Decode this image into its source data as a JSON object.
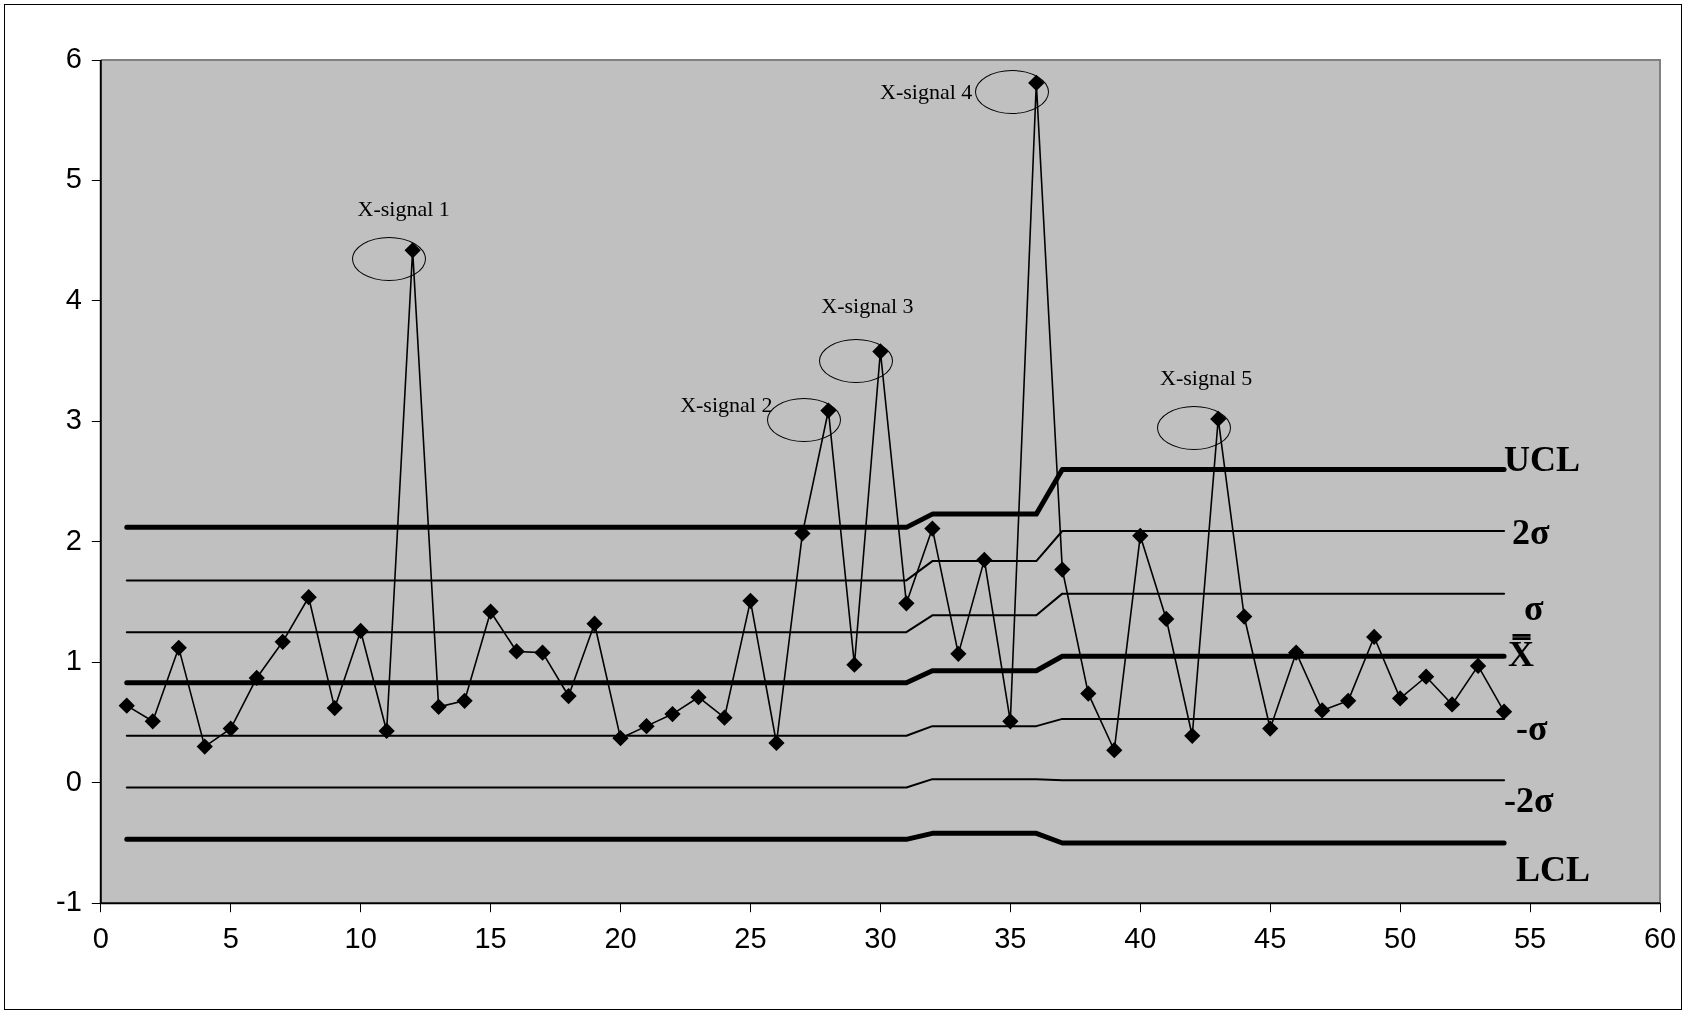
{
  "chart_data": {
    "type": "line",
    "x": [
      1,
      2,
      3,
      4,
      5,
      6,
      7,
      8,
      9,
      10,
      11,
      12,
      13,
      14,
      15,
      16,
      17,
      18,
      19,
      20,
      21,
      22,
      23,
      24,
      25,
      26,
      27,
      28,
      29,
      30,
      31,
      32,
      33,
      34,
      35,
      36,
      37,
      38,
      39,
      40,
      41,
      42,
      43,
      44,
      45,
      46,
      47,
      48,
      49,
      50,
      51,
      52,
      53,
      54
    ],
    "series": [
      {
        "color": "#000000",
        "marker": "diamond",
        "values": [
          0.64,
          0.51,
          1.12,
          0.3,
          0.45,
          0.87,
          1.17,
          1.54,
          0.62,
          1.26,
          0.43,
          4.42,
          0.63,
          0.68,
          1.42,
          1.09,
          1.08,
          0.72,
          1.32,
          0.37,
          0.47,
          0.57,
          0.71,
          0.54,
          1.51,
          0.33,
          2.07,
          3.09,
          0.98,
          3.58,
          1.49,
          2.11,
          1.07,
          1.85,
          0.51,
          5.81,
          1.77,
          0.74,
          0.27,
          2.05,
          1.36,
          0.39,
          3.02,
          1.38,
          0.45,
          1.08,
          0.6,
          0.68,
          1.21,
          0.7,
          0.88,
          0.65,
          0.97,
          0.59
        ]
      },
      {
        "name": "UCL",
        "color": "#000000",
        "marker": "none",
        "values": [
          2.12,
          2.12,
          2.12,
          2.12,
          2.12,
          2.12,
          2.12,
          2.12,
          2.12,
          2.12,
          2.12,
          2.12,
          2.12,
          2.12,
          2.12,
          2.12,
          2.12,
          2.12,
          2.12,
          2.12,
          2.12,
          2.12,
          2.12,
          2.12,
          2.12,
          2.12,
          2.12,
          2.12,
          2.12,
          2.12,
          2.12,
          2.23,
          2.23,
          2.23,
          2.23,
          2.23,
          2.6,
          2.6,
          2.6,
          2.6,
          2.6,
          2.6,
          2.6,
          2.6,
          2.6,
          2.6,
          2.6,
          2.6,
          2.6,
          2.6,
          2.6,
          2.6,
          2.6,
          2.6
        ]
      },
      {
        "name": "2σ",
        "color": "#000000",
        "marker": "none",
        "values": [
          1.68,
          1.68,
          1.68,
          1.68,
          1.68,
          1.68,
          1.68,
          1.68,
          1.68,
          1.68,
          1.68,
          1.68,
          1.68,
          1.68,
          1.68,
          1.68,
          1.68,
          1.68,
          1.68,
          1.68,
          1.68,
          1.68,
          1.68,
          1.68,
          1.68,
          1.68,
          1.68,
          1.68,
          1.68,
          1.68,
          1.68,
          1.84,
          1.84,
          1.84,
          1.84,
          1.84,
          2.09,
          2.09,
          2.09,
          2.09,
          2.09,
          2.09,
          2.09,
          2.09,
          2.09,
          2.09,
          2.09,
          2.09,
          2.09,
          2.09,
          2.09,
          2.09,
          2.09,
          2.09
        ]
      },
      {
        "name": "σ",
        "color": "#000000",
        "marker": "none",
        "values": [
          1.25,
          1.25,
          1.25,
          1.25,
          1.25,
          1.25,
          1.25,
          1.25,
          1.25,
          1.25,
          1.25,
          1.25,
          1.25,
          1.25,
          1.25,
          1.25,
          1.25,
          1.25,
          1.25,
          1.25,
          1.25,
          1.25,
          1.25,
          1.25,
          1.25,
          1.25,
          1.25,
          1.25,
          1.25,
          1.25,
          1.25,
          1.39,
          1.39,
          1.39,
          1.39,
          1.39,
          1.57,
          1.57,
          1.57,
          1.57,
          1.57,
          1.57,
          1.57,
          1.57,
          1.57,
          1.57,
          1.57,
          1.57,
          1.57,
          1.57,
          1.57,
          1.57,
          1.57,
          1.57
        ]
      },
      {
        "name": "X̿",
        "color": "#000000",
        "marker": "none",
        "values": [
          0.83,
          0.83,
          0.83,
          0.83,
          0.83,
          0.83,
          0.83,
          0.83,
          0.83,
          0.83,
          0.83,
          0.83,
          0.83,
          0.83,
          0.83,
          0.83,
          0.83,
          0.83,
          0.83,
          0.83,
          0.83,
          0.83,
          0.83,
          0.83,
          0.83,
          0.83,
          0.83,
          0.83,
          0.83,
          0.83,
          0.83,
          0.93,
          0.93,
          0.93,
          0.93,
          0.93,
          1.05,
          1.05,
          1.05,
          1.05,
          1.05,
          1.05,
          1.05,
          1.05,
          1.05,
          1.05,
          1.05,
          1.05,
          1.05,
          1.05,
          1.05,
          1.05,
          1.05,
          1.05
        ]
      },
      {
        "name": "-σ",
        "color": "#000000",
        "marker": "none",
        "values": [
          0.39,
          0.39,
          0.39,
          0.39,
          0.39,
          0.39,
          0.39,
          0.39,
          0.39,
          0.39,
          0.39,
          0.39,
          0.39,
          0.39,
          0.39,
          0.39,
          0.39,
          0.39,
          0.39,
          0.39,
          0.39,
          0.39,
          0.39,
          0.39,
          0.39,
          0.39,
          0.39,
          0.39,
          0.39,
          0.39,
          0.39,
          0.47,
          0.47,
          0.47,
          0.47,
          0.47,
          0.53,
          0.53,
          0.53,
          0.53,
          0.53,
          0.53,
          0.53,
          0.53,
          0.53,
          0.53,
          0.53,
          0.53,
          0.53,
          0.53,
          0.53,
          0.53,
          0.53,
          0.53
        ]
      },
      {
        "name": "-2σ",
        "color": "#000000",
        "marker": "none",
        "values": [
          -0.04,
          -0.04,
          -0.04,
          -0.04,
          -0.04,
          -0.04,
          -0.04,
          -0.04,
          -0.04,
          -0.04,
          -0.04,
          -0.04,
          -0.04,
          -0.04,
          -0.04,
          -0.04,
          -0.04,
          -0.04,
          -0.04,
          -0.04,
          -0.04,
          -0.04,
          -0.04,
          -0.04,
          -0.04,
          -0.04,
          -0.04,
          -0.04,
          -0.04,
          -0.04,
          -0.04,
          0.03,
          0.03,
          0.03,
          0.03,
          0.03,
          0.02,
          0.02,
          0.02,
          0.02,
          0.02,
          0.02,
          0.02,
          0.02,
          0.02,
          0.02,
          0.02,
          0.02,
          0.02,
          0.02,
          0.02,
          0.02,
          0.02,
          0.02
        ]
      },
      {
        "name": "LCL",
        "color": "#000000",
        "marker": "none",
        "values": [
          -0.47,
          -0.47,
          -0.47,
          -0.47,
          -0.47,
          -0.47,
          -0.47,
          -0.47,
          -0.47,
          -0.47,
          -0.47,
          -0.47,
          -0.47,
          -0.47,
          -0.47,
          -0.47,
          -0.47,
          -0.47,
          -0.47,
          -0.47,
          -0.47,
          -0.47,
          -0.47,
          -0.47,
          -0.47,
          -0.47,
          -0.47,
          -0.47,
          -0.47,
          -0.47,
          -0.47,
          -0.42,
          -0.42,
          -0.42,
          -0.42,
          -0.42,
          -0.5,
          -0.5,
          -0.5,
          -0.5,
          -0.5,
          -0.5,
          -0.5,
          -0.5,
          -0.5,
          -0.5,
          -0.5,
          -0.5,
          -0.5,
          -0.5,
          -0.5,
          -0.5,
          -0.5,
          -0.5
        ]
      }
    ],
    "annotations": [
      {
        "text": "X-signal 1",
        "x": 12,
        "y": 4.42
      },
      {
        "text": "X-signal 2",
        "x": 28,
        "y": 3.09
      },
      {
        "text": "X-signal 3",
        "x": 30,
        "y": 3.58
      },
      {
        "text": "X-signal 4",
        "x": 36,
        "y": 5.81
      },
      {
        "text": "X-signal 5",
        "x": 43,
        "y": 3.02
      }
    ],
    "xlim": [
      0,
      60
    ],
    "xticks": [
      0,
      5,
      10,
      15,
      20,
      25,
      30,
      35,
      40,
      45,
      50,
      55,
      60
    ],
    "ylim": [
      -1,
      6
    ],
    "yticks": [
      -1,
      0,
      1,
      2,
      3,
      4,
      5,
      6
    ],
    "grid": false,
    "legend": false
  }
}
